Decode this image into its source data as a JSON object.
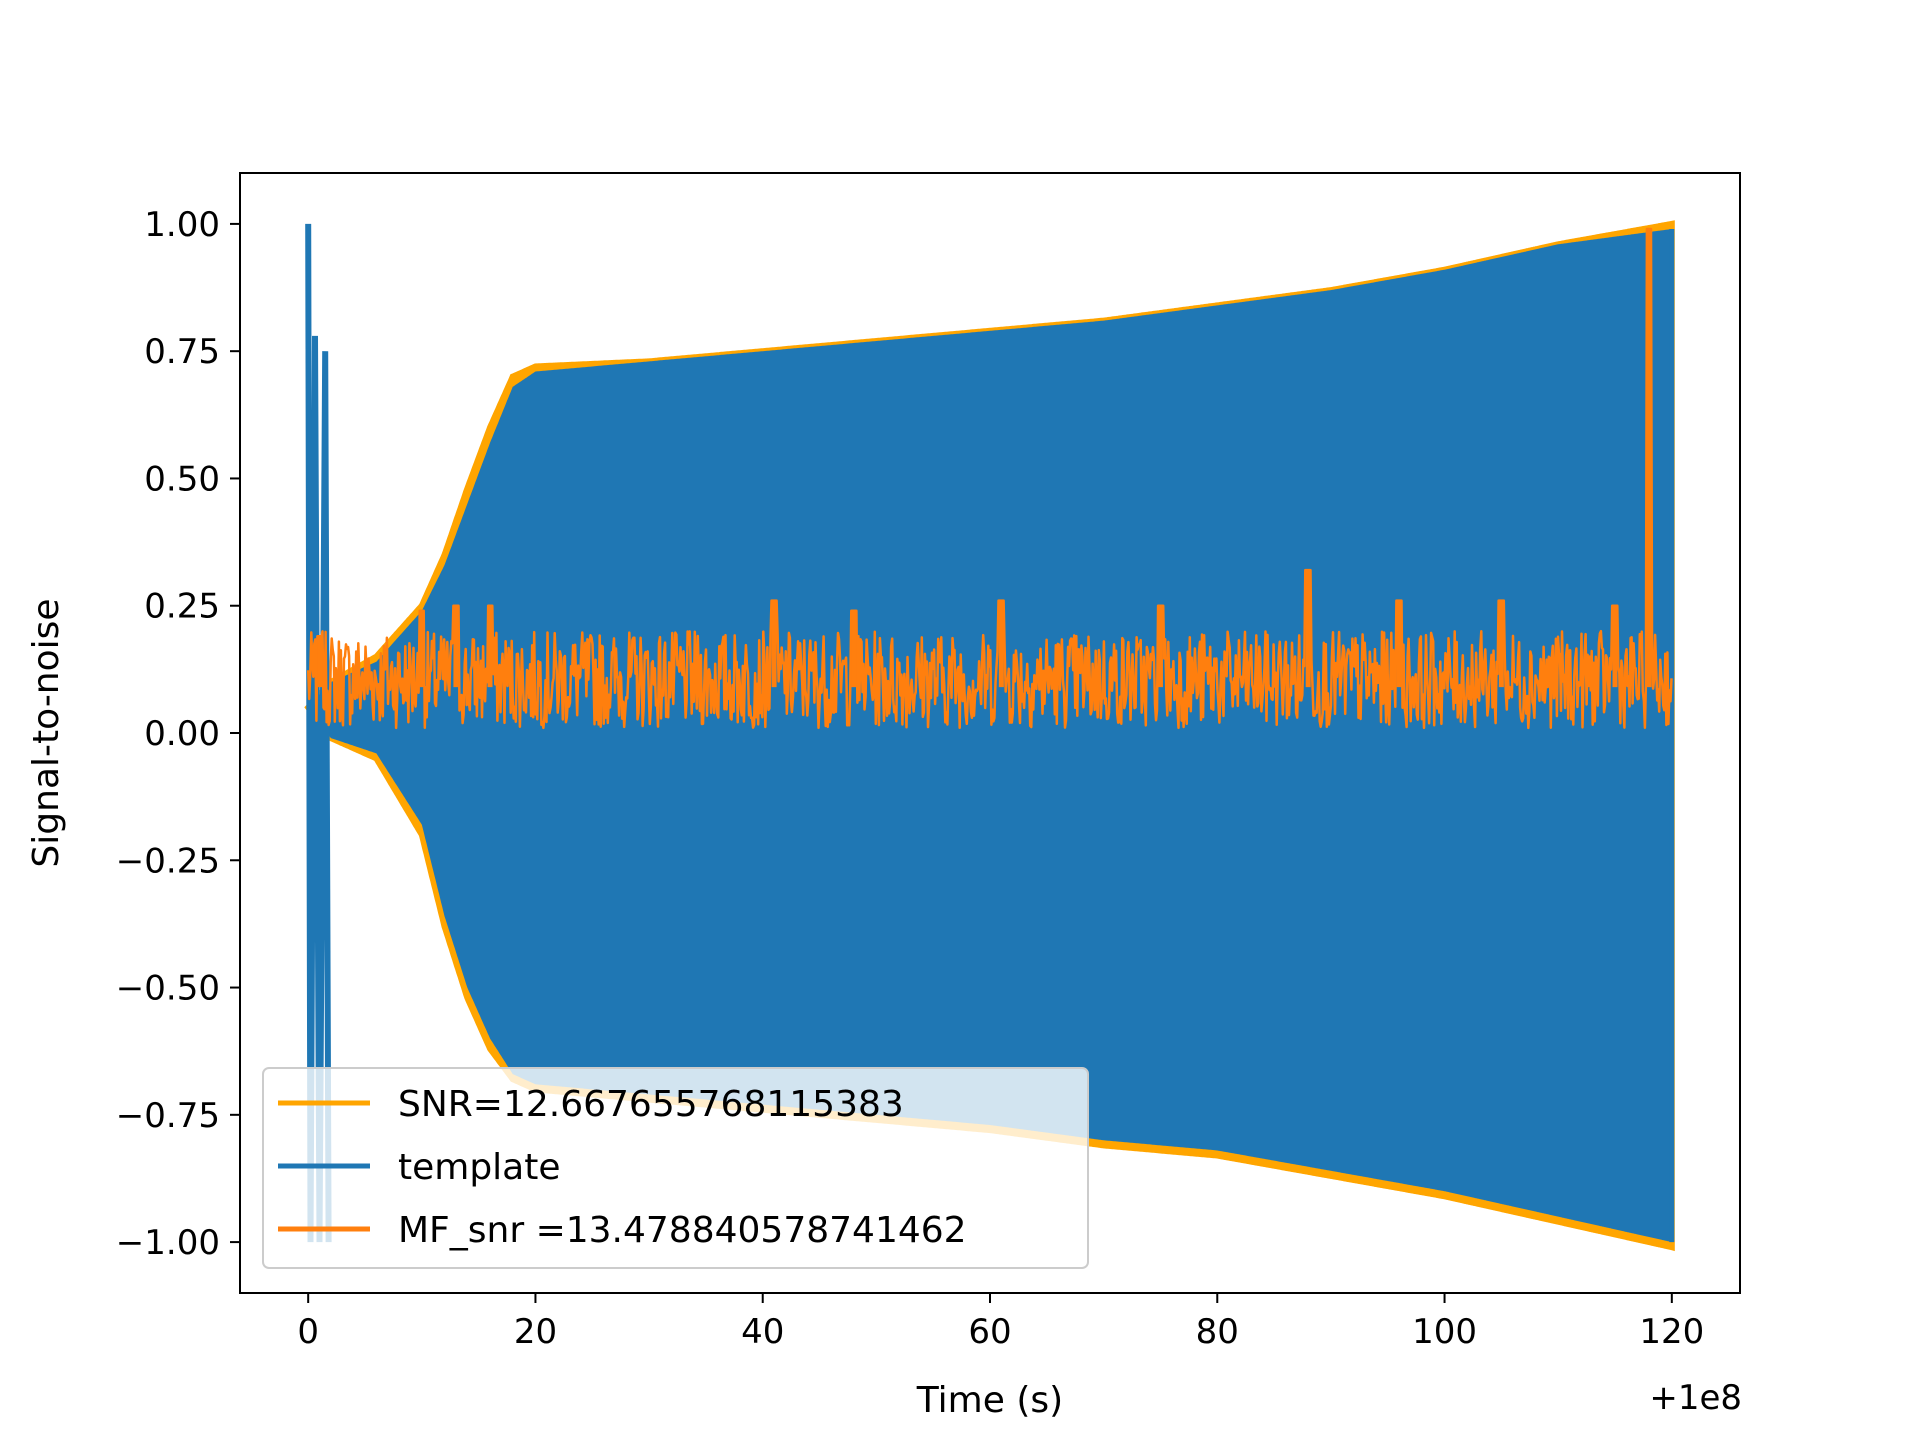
{
  "chart_data": {
    "type": "line",
    "title": "",
    "xlabel": "Time (s)",
    "ylabel": "Signal-to-noise",
    "x_offset_label": "+1e8",
    "xlim": [
      -6,
      126
    ],
    "ylim": [
      -1.1,
      1.1
    ],
    "xticks": [
      0,
      20,
      40,
      60,
      80,
      100,
      120
    ],
    "xtick_labels": [
      "0",
      "20",
      "40",
      "60",
      "80",
      "100",
      "120"
    ],
    "yticks": [
      1.0,
      0.75,
      0.5,
      0.25,
      0.0,
      -0.25,
      -0.5,
      -0.75,
      -1.0
    ],
    "ytick_labels": [
      "1.00",
      "0.75",
      "0.50",
      "0.25",
      "0.00",
      "−0.25",
      "−0.50",
      "−0.75",
      "−1.00"
    ],
    "grid": false,
    "legend_position": "lower-left",
    "series": [
      {
        "name": "SNR=12.667655768115383",
        "color": "#ffa500",
        "style": "envelope",
        "upper": [
          [
            0,
            0.05
          ],
          [
            2,
            0.1
          ],
          [
            6,
            0.15
          ],
          [
            10,
            0.25
          ],
          [
            12,
            0.35
          ],
          [
            14,
            0.48
          ],
          [
            16,
            0.6
          ],
          [
            18,
            0.7
          ],
          [
            20,
            0.72
          ],
          [
            30,
            0.73
          ],
          [
            40,
            0.75
          ],
          [
            50,
            0.77
          ],
          [
            60,
            0.79
          ],
          [
            70,
            0.81
          ],
          [
            80,
            0.84
          ],
          [
            90,
            0.87
          ],
          [
            100,
            0.91
          ],
          [
            110,
            0.96
          ],
          [
            120,
            1.0
          ]
        ],
        "lower": [
          [
            2,
            -0.01
          ],
          [
            6,
            -0.05
          ],
          [
            10,
            -0.2
          ],
          [
            12,
            -0.38
          ],
          [
            14,
            -0.52
          ],
          [
            16,
            -0.62
          ],
          [
            18,
            -0.68
          ],
          [
            20,
            -0.7
          ],
          [
            30,
            -0.72
          ],
          [
            40,
            -0.74
          ],
          [
            50,
            -0.76
          ],
          [
            60,
            -0.78
          ],
          [
            70,
            -0.81
          ],
          [
            80,
            -0.83
          ],
          [
            90,
            -0.87
          ],
          [
            100,
            -0.91
          ],
          [
            110,
            -0.96
          ],
          [
            120,
            -1.01
          ]
        ]
      },
      {
        "name": "template",
        "color": "#1f77b4",
        "style": "filled-oscillation",
        "upper": [
          [
            0,
            0.05
          ],
          [
            2,
            0.1
          ],
          [
            6,
            0.14
          ],
          [
            10,
            0.24
          ],
          [
            12,
            0.33
          ],
          [
            14,
            0.45
          ],
          [
            16,
            0.57
          ],
          [
            18,
            0.68
          ],
          [
            20,
            0.71
          ],
          [
            30,
            0.73
          ],
          [
            40,
            0.75
          ],
          [
            50,
            0.77
          ],
          [
            60,
            0.79
          ],
          [
            70,
            0.81
          ],
          [
            80,
            0.84
          ],
          [
            90,
            0.87
          ],
          [
            100,
            0.91
          ],
          [
            110,
            0.96
          ],
          [
            120,
            0.99
          ]
        ],
        "lower": [
          [
            2,
            -0.01
          ],
          [
            6,
            -0.04
          ],
          [
            10,
            -0.18
          ],
          [
            12,
            -0.36
          ],
          [
            14,
            -0.5
          ],
          [
            16,
            -0.6
          ],
          [
            18,
            -0.67
          ],
          [
            20,
            -0.69
          ],
          [
            30,
            -0.71
          ],
          [
            40,
            -0.73
          ],
          [
            50,
            -0.75
          ],
          [
            60,
            -0.77
          ],
          [
            70,
            -0.8
          ],
          [
            80,
            -0.82
          ],
          [
            90,
            -0.86
          ],
          [
            100,
            -0.9
          ],
          [
            110,
            -0.95
          ],
          [
            120,
            -1.0
          ]
        ],
        "initial_burst": [
          [
            0,
            1.0
          ],
          [
            0.2,
            -1.0
          ],
          [
            0.6,
            0.78
          ],
          [
            1.0,
            -1.0
          ],
          [
            1.5,
            0.75
          ],
          [
            1.8,
            -1.0
          ]
        ]
      },
      {
        "name": " MF_snr =13.478840578741462",
        "color": "#ff7f0e",
        "style": "noise",
        "baseline": 0.09,
        "min": 0.0,
        "typical_max": 0.2,
        "peaks": [
          [
            1,
            0.19
          ],
          [
            10,
            0.24
          ],
          [
            13,
            0.25
          ],
          [
            16,
            0.25
          ],
          [
            41,
            0.26
          ],
          [
            48,
            0.24
          ],
          [
            61,
            0.26
          ],
          [
            75,
            0.25
          ],
          [
            88,
            0.32
          ],
          [
            96,
            0.26
          ],
          [
            105,
            0.26
          ],
          [
            115,
            0.25
          ],
          [
            118,
            0.99
          ]
        ]
      }
    ]
  }
}
